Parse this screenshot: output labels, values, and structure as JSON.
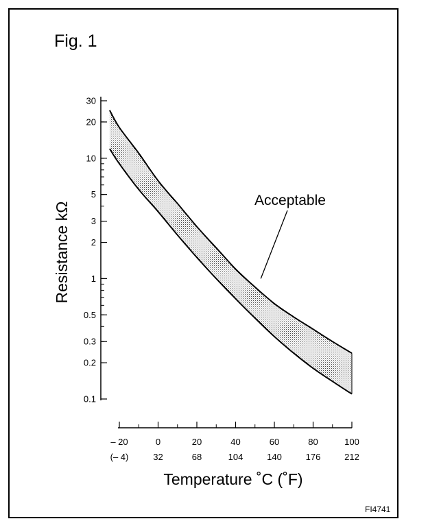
{
  "figure": {
    "label": "Fig. 1",
    "code": "FI4741"
  },
  "chart_data": {
    "type": "area",
    "title": "",
    "ylabel": "Resistance kΩ",
    "xlabel": "Temperature ˚C (˚F)",
    "y_scale": "log",
    "ylim": [
      0.1,
      30
    ],
    "xlim": [
      -20,
      100
    ],
    "y_ticks": [
      30,
      20,
      10,
      5,
      3,
      2,
      1,
      0.5,
      0.3,
      0.2,
      0.1
    ],
    "y_tick_labels": [
      "30",
      "20",
      "10",
      "5",
      "3",
      "2",
      "1",
      "0.5",
      "0.3",
      "0.2",
      "0.1"
    ],
    "x_ticks": [
      -20,
      0,
      20,
      40,
      60,
      80,
      100
    ],
    "x_tick_labels": [
      "– 20",
      "0",
      "20",
      "40",
      "60",
      "80",
      "100"
    ],
    "x_tick_labels_f": [
      "(– 4)",
      "32",
      "68",
      "104",
      "140",
      "176",
      "212"
    ],
    "x": [
      -25,
      -20,
      -10,
      0,
      10,
      20,
      30,
      40,
      50,
      60,
      70,
      80,
      90,
      100
    ],
    "series": [
      {
        "values": [
          25,
          18,
          11,
          6.5,
          4.2,
          2.7,
          1.8,
          1.2,
          0.85,
          0.62,
          0.48,
          0.38,
          0.3,
          0.24
        ]
      },
      {
        "values": [
          12,
          9,
          5.5,
          3.6,
          2.3,
          1.5,
          1.0,
          0.68,
          0.47,
          0.33,
          0.24,
          0.18,
          0.14,
          0.11
        ]
      }
    ],
    "annotations": [
      {
        "text": "Acceptable",
        "x": 53,
        "y": 1.0
      }
    ],
    "grid": false,
    "legend": "none"
  }
}
